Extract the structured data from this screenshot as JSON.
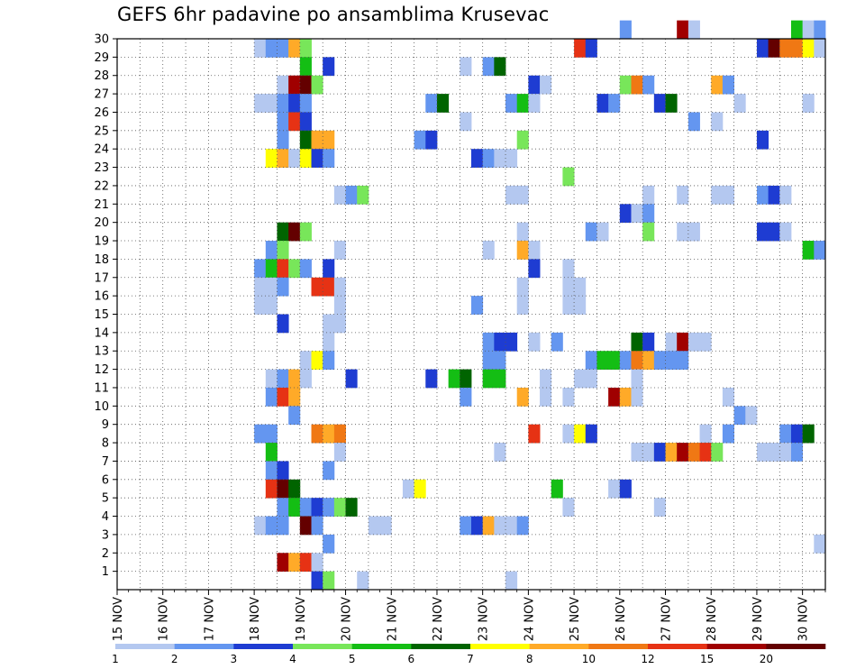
{
  "chart_data": {
    "type": "heatmap",
    "title": "GEFS 6hr padavine po ansamblima Krusevac",
    "xlabel": "",
    "ylabel": "",
    "x_range": [
      0,
      62
    ],
    "y_range": [
      0,
      30
    ],
    "x_ticks": [
      {
        "label": "15 NOV",
        "step": 0
      },
      {
        "label": "16 NOV",
        "step": 4
      },
      {
        "label": "17 NOV",
        "step": 8
      },
      {
        "label": "18 NOV",
        "step": 12
      },
      {
        "label": "19 NOV",
        "step": 16
      },
      {
        "label": "20 NOV",
        "step": 20
      },
      {
        "label": "21 NOV",
        "step": 24
      },
      {
        "label": "22 NOV",
        "step": 28
      },
      {
        "label": "23 NOV",
        "step": 32
      },
      {
        "label": "24 NOV",
        "step": 36
      },
      {
        "label": "25 NOV",
        "step": 40
      },
      {
        "label": "26 NOV",
        "step": 44
      },
      {
        "label": "27 NOV",
        "step": 48
      },
      {
        "label": "28 NOV",
        "step": 52
      },
      {
        "label": "29 NOV",
        "step": 56
      },
      {
        "label": "30 NOV",
        "step": 60
      }
    ],
    "y_ticks": [
      "1",
      "2",
      "3",
      "4",
      "5",
      "6",
      "7",
      "8",
      "9",
      "10",
      "11",
      "12",
      "13",
      "14",
      "15",
      "16",
      "17",
      "18",
      "19",
      "20",
      "21",
      "22",
      "23",
      "24",
      "25",
      "26",
      "27",
      "28",
      "29",
      "30"
    ],
    "grid": true,
    "colorbar": {
      "labels": [
        "1",
        "2",
        "3",
        "4",
        "5",
        "6",
        "7",
        "8",
        "10",
        "12",
        "15",
        "20"
      ],
      "colors": [
        "#b4c8f0",
        "#6496f0",
        "#1e3cd2",
        "#78e65a",
        "#14be14",
        "#006400",
        "#ffff00",
        "#ffaa28",
        "#f07814",
        "#e63214",
        "#a00000",
        "#640000"
      ]
    },
    "cells": [
      [
        30,
        44,
        1
      ],
      [
        30,
        49,
        10
      ],
      [
        30,
        50,
        0
      ],
      [
        30,
        59,
        4
      ],
      [
        30,
        60,
        0
      ],
      [
        30,
        61,
        1
      ],
      [
        29,
        12,
        0
      ],
      [
        29,
        13,
        1
      ],
      [
        29,
        14,
        1
      ],
      [
        29,
        15,
        7
      ],
      [
        29,
        16,
        3
      ],
      [
        29,
        40,
        9
      ],
      [
        29,
        41,
        2
      ],
      [
        29,
        56,
        2
      ],
      [
        29,
        57,
        11
      ],
      [
        29,
        58,
        8
      ],
      [
        29,
        59,
        8
      ],
      [
        29,
        60,
        6
      ],
      [
        29,
        61,
        0
      ],
      [
        28,
        16,
        4
      ],
      [
        28,
        18,
        2
      ],
      [
        28,
        30,
        0
      ],
      [
        28,
        32,
        1
      ],
      [
        28,
        33,
        5
      ],
      [
        27,
        14,
        0
      ],
      [
        27,
        15,
        10
      ],
      [
        27,
        16,
        11
      ],
      [
        27,
        17,
        3
      ],
      [
        27,
        36,
        2
      ],
      [
        27,
        37,
        0
      ],
      [
        27,
        44,
        3
      ],
      [
        27,
        45,
        8
      ],
      [
        27,
        46,
        1
      ],
      [
        27,
        52,
        7
      ],
      [
        27,
        53,
        1
      ],
      [
        26,
        12,
        0
      ],
      [
        26,
        13,
        0
      ],
      [
        26,
        14,
        1
      ],
      [
        26,
        15,
        2
      ],
      [
        26,
        16,
        1
      ],
      [
        26,
        27,
        1
      ],
      [
        26,
        28,
        5
      ],
      [
        26,
        34,
        1
      ],
      [
        26,
        35,
        4
      ],
      [
        26,
        36,
        0
      ],
      [
        26,
        42,
        2
      ],
      [
        26,
        43,
        1
      ],
      [
        26,
        47,
        2
      ],
      [
        26,
        48,
        5
      ],
      [
        26,
        54,
        0
      ],
      [
        26,
        60,
        0
      ],
      [
        25,
        14,
        1
      ],
      [
        25,
        15,
        9
      ],
      [
        25,
        16,
        2
      ],
      [
        25,
        30,
        0
      ],
      [
        25,
        50,
        1
      ],
      [
        25,
        52,
        0
      ],
      [
        24,
        14,
        1
      ],
      [
        24,
        16,
        5
      ],
      [
        24,
        17,
        7
      ],
      [
        24,
        18,
        7
      ],
      [
        24,
        26,
        1
      ],
      [
        24,
        27,
        2
      ],
      [
        24,
        35,
        3
      ],
      [
        24,
        56,
        2
      ],
      [
        23,
        13,
        6
      ],
      [
        23,
        14,
        7
      ],
      [
        23,
        15,
        0
      ],
      [
        23,
        16,
        6
      ],
      [
        23,
        17,
        2
      ],
      [
        23,
        18,
        1
      ],
      [
        23,
        31,
        2
      ],
      [
        23,
        32,
        1
      ],
      [
        23,
        33,
        0
      ],
      [
        23,
        34,
        0
      ],
      [
        22,
        39,
        3
      ],
      [
        21,
        19,
        0
      ],
      [
        21,
        20,
        1
      ],
      [
        21,
        21,
        3
      ],
      [
        21,
        34,
        0
      ],
      [
        21,
        35,
        0
      ],
      [
        21,
        46,
        0
      ],
      [
        21,
        49,
        0
      ],
      [
        21,
        52,
        0
      ],
      [
        21,
        53,
        0
      ],
      [
        21,
        56,
        1
      ],
      [
        21,
        57,
        2
      ],
      [
        21,
        58,
        0
      ],
      [
        20,
        44,
        2
      ],
      [
        20,
        45,
        0
      ],
      [
        20,
        46,
        1
      ],
      [
        19,
        14,
        5
      ],
      [
        19,
        15,
        11
      ],
      [
        19,
        16,
        3
      ],
      [
        19,
        35,
        0
      ],
      [
        19,
        41,
        1
      ],
      [
        19,
        42,
        0
      ],
      [
        19,
        46,
        3
      ],
      [
        19,
        49,
        0
      ],
      [
        19,
        50,
        0
      ],
      [
        19,
        56,
        2
      ],
      [
        19,
        57,
        2
      ],
      [
        19,
        58,
        0
      ],
      [
        18,
        13,
        1
      ],
      [
        18,
        14,
        3
      ],
      [
        18,
        19,
        0
      ],
      [
        18,
        32,
        0
      ],
      [
        18,
        35,
        7
      ],
      [
        18,
        36,
        0
      ],
      [
        18,
        60,
        4
      ],
      [
        18,
        61,
        1
      ],
      [
        17,
        12,
        1
      ],
      [
        17,
        13,
        4
      ],
      [
        17,
        14,
        9
      ],
      [
        17,
        15,
        3
      ],
      [
        17,
        16,
        1
      ],
      [
        17,
        18,
        2
      ],
      [
        17,
        36,
        2
      ],
      [
        17,
        39,
        0
      ],
      [
        16,
        12,
        0
      ],
      [
        16,
        13,
        0
      ],
      [
        16,
        14,
        1
      ],
      [
        16,
        17,
        9
      ],
      [
        16,
        18,
        9
      ],
      [
        16,
        19,
        0
      ],
      [
        16,
        35,
        0
      ],
      [
        16,
        39,
        0
      ],
      [
        16,
        40,
        0
      ],
      [
        15,
        12,
        0
      ],
      [
        15,
        13,
        0
      ],
      [
        15,
        19,
        0
      ],
      [
        15,
        31,
        1
      ],
      [
        15,
        35,
        0
      ],
      [
        15,
        39,
        0
      ],
      [
        15,
        40,
        0
      ],
      [
        14,
        14,
        2
      ],
      [
        14,
        18,
        0
      ],
      [
        14,
        19,
        0
      ],
      [
        13,
        18,
        0
      ],
      [
        13,
        32,
        1
      ],
      [
        13,
        33,
        2
      ],
      [
        13,
        34,
        2
      ],
      [
        13,
        36,
        0
      ],
      [
        13,
        38,
        1
      ],
      [
        13,
        45,
        5
      ],
      [
        13,
        46,
        2
      ],
      [
        13,
        48,
        0
      ],
      [
        13,
        49,
        10
      ],
      [
        13,
        50,
        0
      ],
      [
        13,
        51,
        0
      ],
      [
        12,
        16,
        0
      ],
      [
        12,
        17,
        6
      ],
      [
        12,
        18,
        1
      ],
      [
        12,
        32,
        1
      ],
      [
        12,
        33,
        1
      ],
      [
        12,
        41,
        1
      ],
      [
        12,
        42,
        4
      ],
      [
        12,
        43,
        4
      ],
      [
        12,
        44,
        1
      ],
      [
        12,
        45,
        8
      ],
      [
        12,
        46,
        7
      ],
      [
        12,
        47,
        1
      ],
      [
        12,
        48,
        1
      ],
      [
        12,
        49,
        1
      ],
      [
        11,
        13,
        0
      ],
      [
        11,
        14,
        1
      ],
      [
        11,
        15,
        7
      ],
      [
        11,
        16,
        0
      ],
      [
        11,
        20,
        2
      ],
      [
        11,
        27,
        2
      ],
      [
        11,
        29,
        4
      ],
      [
        11,
        30,
        5
      ],
      [
        11,
        32,
        4
      ],
      [
        11,
        33,
        4
      ],
      [
        11,
        37,
        0
      ],
      [
        11,
        40,
        0
      ],
      [
        11,
        41,
        0
      ],
      [
        11,
        45,
        0
      ],
      [
        10,
        13,
        1
      ],
      [
        10,
        14,
        9
      ],
      [
        10,
        15,
        7
      ],
      [
        10,
        30,
        1
      ],
      [
        10,
        35,
        7
      ],
      [
        10,
        37,
        0
      ],
      [
        10,
        39,
        0
      ],
      [
        10,
        43,
        10
      ],
      [
        10,
        44,
        7
      ],
      [
        10,
        45,
        0
      ],
      [
        10,
        53,
        0
      ],
      [
        9,
        15,
        1
      ],
      [
        9,
        54,
        1
      ],
      [
        9,
        55,
        0
      ],
      [
        8,
        12,
        1
      ],
      [
        8,
        13,
        1
      ],
      [
        8,
        17,
        8
      ],
      [
        8,
        18,
        7
      ],
      [
        8,
        19,
        8
      ],
      [
        8,
        36,
        9
      ],
      [
        8,
        39,
        0
      ],
      [
        8,
        40,
        6
      ],
      [
        8,
        41,
        2
      ],
      [
        8,
        51,
        0
      ],
      [
        8,
        53,
        1
      ],
      [
        8,
        58,
        1
      ],
      [
        8,
        59,
        2
      ],
      [
        8,
        60,
        5
      ],
      [
        7,
        13,
        4
      ],
      [
        7,
        19,
        0
      ],
      [
        7,
        33,
        0
      ],
      [
        7,
        45,
        0
      ],
      [
        7,
        46,
        0
      ],
      [
        7,
        47,
        2
      ],
      [
        7,
        48,
        7
      ],
      [
        7,
        49,
        10
      ],
      [
        7,
        50,
        8
      ],
      [
        7,
        51,
        9
      ],
      [
        7,
        52,
        3
      ],
      [
        7,
        56,
        0
      ],
      [
        7,
        57,
        0
      ],
      [
        7,
        58,
        0
      ],
      [
        7,
        59,
        1
      ],
      [
        6,
        13,
        1
      ],
      [
        6,
        14,
        2
      ],
      [
        6,
        18,
        1
      ],
      [
        5,
        13,
        9
      ],
      [
        5,
        14,
        11
      ],
      [
        5,
        15,
        5
      ],
      [
        5,
        25,
        0
      ],
      [
        5,
        26,
        6
      ],
      [
        5,
        38,
        4
      ],
      [
        5,
        43,
        0
      ],
      [
        5,
        44,
        2
      ],
      [
        4,
        14,
        1
      ],
      [
        4,
        15,
        4
      ],
      [
        4,
        16,
        1
      ],
      [
        4,
        17,
        2
      ],
      [
        4,
        18,
        1
      ],
      [
        4,
        19,
        3
      ],
      [
        4,
        20,
        5
      ],
      [
        4,
        39,
        0
      ],
      [
        4,
        47,
        0
      ],
      [
        3,
        12,
        0
      ],
      [
        3,
        13,
        1
      ],
      [
        3,
        14,
        1
      ],
      [
        3,
        16,
        11
      ],
      [
        3,
        17,
        1
      ],
      [
        3,
        22,
        0
      ],
      [
        3,
        23,
        0
      ],
      [
        3,
        30,
        1
      ],
      [
        3,
        31,
        2
      ],
      [
        3,
        32,
        7
      ],
      [
        3,
        33,
        0
      ],
      [
        3,
        34,
        0
      ],
      [
        3,
        35,
        1
      ],
      [
        2,
        18,
        1
      ],
      [
        2,
        61,
        0
      ],
      [
        1,
        14,
        10
      ],
      [
        1,
        15,
        7
      ],
      [
        1,
        16,
        9
      ],
      [
        1,
        17,
        0
      ],
      [
        0,
        17,
        2
      ],
      [
        0,
        18,
        3
      ],
      [
        0,
        21,
        0
      ],
      [
        0,
        34,
        0
      ]
    ]
  }
}
